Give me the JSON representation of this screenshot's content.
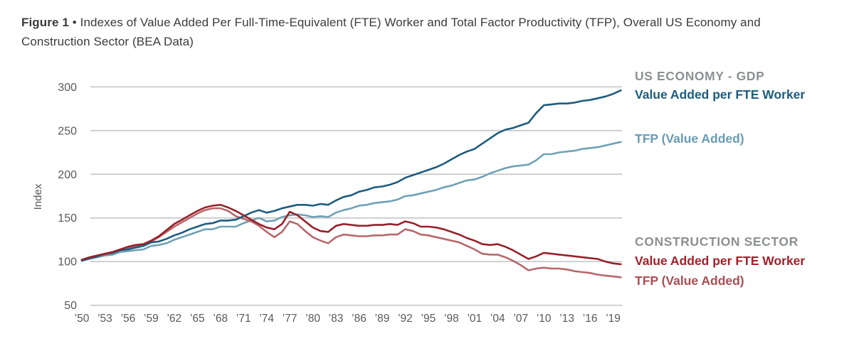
{
  "figure": {
    "label": "Figure 1",
    "separator": "•",
    "title": "Indexes of Value Added Per Full-Time-Equivalent (FTE) Worker and Total Factor Productivity (TFP), Overall US Economy and Construction Sector (BEA Data)"
  },
  "legend_us": {
    "header": "US ECONOMY - GDP",
    "va_label": "Value Added per FTE Worker",
    "tfp_label": "TFP (Value Added)"
  },
  "legend_construction": {
    "header": "CONSTRUCTION SECTOR",
    "va_label": "Value Added per FTE Worker",
    "tfp_label": "TFP (Value Added)"
  },
  "colors": {
    "title_text": "#3b3b3b",
    "axis_text": "#57595b",
    "gridline": "#c7c8ca",
    "legend_header_gray": "#8d9093",
    "us_va_line": "#1d5c7e",
    "us_va_label": "#1d5c7e",
    "us_tfp_line": "#6fa1b5",
    "us_tfp_label": "#679cb4",
    "constr_va_line": "#97212a",
    "constr_va_label": "#a3202a",
    "constr_tfp_line": "#b7686c",
    "constr_tfp_label": "#ad4d53"
  },
  "chart_data": {
    "type": "line",
    "title": "Indexes of Value Added Per Full-Time-Equivalent (FTE) Worker and Total Factor Productivity (TFP), Overall US Economy and Construction Sector (BEA Data)",
    "xlabel": "",
    "ylabel": "Index",
    "ylim": [
      50,
      300
    ],
    "y_ticks": [
      50,
      100,
      150,
      200,
      250,
      300
    ],
    "grid": "horizontal",
    "legend_position": "right",
    "x_tick_labels": [
      "’50",
      "’53",
      "’56",
      "’59",
      "’62",
      "’65",
      "’68",
      "’71",
      "’74",
      "’77",
      "’80",
      "’83",
      "’86",
      "’89",
      "’92",
      "’95",
      "’98",
      "’01",
      "’04",
      "’07",
      "’10",
      "’13",
      "’16",
      "’19"
    ],
    "x_tick_years": [
      1950,
      1953,
      1956,
      1959,
      1962,
      1965,
      1968,
      1971,
      1974,
      1977,
      1980,
      1983,
      1986,
      1989,
      1992,
      1995,
      1998,
      2001,
      2004,
      2007,
      2010,
      2013,
      2016,
      2019
    ],
    "years": [
      1950,
      1951,
      1952,
      1953,
      1954,
      1955,
      1956,
      1957,
      1958,
      1959,
      1960,
      1961,
      1962,
      1963,
      1964,
      1965,
      1966,
      1967,
      1968,
      1969,
      1970,
      1971,
      1972,
      1973,
      1974,
      1975,
      1976,
      1977,
      1978,
      1979,
      1980,
      1981,
      1982,
      1983,
      1984,
      1985,
      1986,
      1987,
      1988,
      1989,
      1990,
      1991,
      1992,
      1993,
      1994,
      1995,
      1996,
      1997,
      1998,
      1999,
      2000,
      2001,
      2002,
      2003,
      2004,
      2005,
      2006,
      2007,
      2008,
      2009,
      2010,
      2011,
      2012,
      2013,
      2014,
      2015,
      2016,
      2017,
      2018,
      2019,
      2020
    ],
    "series": [
      {
        "name": "US Economy - TFP (Value Added)",
        "color_key": "us_tfp_line",
        "values": [
          101,
          103,
          105,
          107,
          108,
          111,
          112,
          113,
          114,
          118,
          119,
          121,
          125,
          128,
          131,
          134,
          137,
          137,
          140,
          140,
          140,
          144,
          147,
          150,
          146,
          147,
          151,
          153,
          154,
          153,
          151,
          152,
          151,
          156,
          159,
          161,
          164,
          165,
          167,
          168,
          169,
          171,
          175,
          176,
          178,
          180,
          182,
          185,
          187,
          190,
          193,
          194,
          197,
          201,
          204,
          207,
          209,
          210,
          211,
          216,
          223,
          223,
          225,
          226,
          227,
          229,
          230,
          231,
          233,
          235,
          237
        ]
      },
      {
        "name": "Construction - TFP (Value Added)",
        "color_key": "constr_tfp_line",
        "values": [
          102,
          104,
          106,
          108,
          110,
          113,
          116,
          118,
          119,
          123,
          128,
          134,
          140,
          145,
          150,
          155,
          159,
          161,
          161,
          158,
          152,
          149,
          146,
          141,
          134,
          128,
          134,
          146,
          143,
          135,
          128,
          124,
          121,
          128,
          131,
          130,
          129,
          129,
          130,
          130,
          131,
          131,
          137,
          135,
          131,
          130,
          128,
          126,
          124,
          122,
          118,
          114,
          109,
          108,
          108,
          105,
          101,
          96,
          90,
          92,
          93,
          92,
          92,
          91,
          89,
          88,
          87,
          85,
          84,
          83,
          82
        ]
      },
      {
        "name": "US Economy - Value Added per FTE Worker",
        "color_key": "us_va_line",
        "values": [
          101,
          104,
          106,
          109,
          110,
          113,
          114,
          116,
          118,
          122,
          123,
          126,
          130,
          133,
          137,
          140,
          143,
          144,
          147,
          147,
          148,
          152,
          156,
          159,
          156,
          158,
          161,
          163,
          165,
          165,
          164,
          166,
          165,
          170,
          174,
          176,
          180,
          182,
          185,
          186,
          188,
          191,
          196,
          199,
          202,
          205,
          208,
          212,
          217,
          222,
          226,
          229,
          235,
          241,
          247,
          251,
          253,
          256,
          259,
          270,
          279,
          280,
          281,
          281,
          282,
          284,
          285,
          287,
          289,
          292,
          296
        ]
      },
      {
        "name": "Construction - Value Added per FTE Worker",
        "color_key": "constr_va_line",
        "values": [
          102,
          105,
          107,
          109,
          111,
          114,
          117,
          119,
          120,
          124,
          129,
          136,
          143,
          148,
          153,
          158,
          162,
          164,
          165,
          162,
          158,
          153,
          148,
          143,
          139,
          137,
          143,
          157,
          153,
          146,
          139,
          135,
          134,
          141,
          143,
          142,
          141,
          141,
          142,
          142,
          143,
          142,
          146,
          144,
          140,
          140,
          139,
          137,
          134,
          131,
          127,
          124,
          120,
          119,
          120,
          117,
          113,
          108,
          103,
          106,
          110,
          109,
          108,
          107,
          106,
          105,
          104,
          103,
          100,
          98,
          97
        ]
      }
    ]
  }
}
